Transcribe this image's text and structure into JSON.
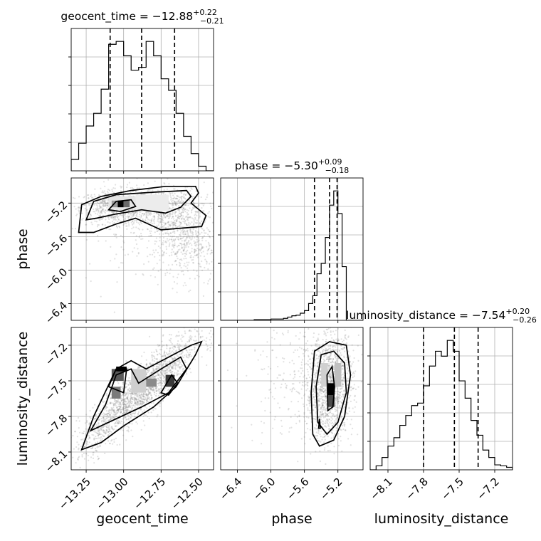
{
  "chart_data": {
    "type": "corner",
    "parameters": [
      "geocent_time",
      "phase",
      "luminosity_distance"
    ],
    "grid": true,
    "panels": [
      {
        "id": "geocent_time",
        "type": "histogram",
        "title": {
          "name": "geocent_time",
          "median": "−12.88",
          "plus": "+0.22",
          "minus": "−0.21"
        },
        "xlim": [
          -13.35,
          -12.4
        ],
        "bins_x": [
          -13.35,
          -13.3,
          -13.25,
          -13.2,
          -13.15,
          -13.1,
          -13.05,
          -13.0,
          -12.95,
          -12.9,
          -12.85,
          -12.8,
          -12.75,
          -12.7,
          -12.65,
          -12.6,
          -12.55,
          -12.5,
          -12.45,
          -12.4
        ],
        "counts": [
          20,
          48,
          78,
          100,
          142,
          220,
          225,
          200,
          175,
          180,
          225,
          200,
          160,
          140,
          100,
          60,
          30,
          8,
          0
        ],
        "quantiles": [
          -13.09,
          -12.88,
          -12.66
        ]
      },
      {
        "id": "phase",
        "type": "histogram",
        "title": {
          "name": "phase",
          "median": "−5.30",
          "plus": "+0.09",
          "minus": "−0.18"
        },
        "xlim": [
          -6.6,
          -4.9
        ],
        "bins_x": [
          -6.6,
          -6.55,
          -6.5,
          -6.45,
          -6.4,
          -6.35,
          -6.3,
          -6.25,
          -6.2,
          -6.15,
          -6.1,
          -6.05,
          -6.0,
          -5.95,
          -5.9,
          -5.85,
          -5.8,
          -5.75,
          -5.7,
          -5.65,
          -5.6,
          -5.55,
          -5.5,
          -5.45,
          -5.4,
          -5.35,
          -5.3,
          -5.25,
          -5.2,
          -5.15,
          -5.1,
          -5.05,
          -5.0,
          -4.95,
          -4.9
        ],
        "counts": [
          0,
          0,
          0,
          0,
          0,
          0,
          0,
          0,
          1,
          1,
          1,
          1,
          2,
          2,
          2,
          3,
          5,
          7,
          8,
          11,
          15,
          26,
          38,
          72,
          88,
          128,
          178,
          200,
          165,
          83,
          0,
          0,
          0,
          0
        ],
        "quantiles": [
          -5.48,
          -5.3,
          -5.21
        ]
      },
      {
        "id": "luminosity_distance",
        "type": "histogram",
        "title": {
          "name": "luminosity_distance",
          "median": "−7.54",
          "plus": "+0.20",
          "minus": "−0.26"
        },
        "xlim": [
          -8.25,
          -7.05
        ],
        "bins_x": [
          -8.25,
          -8.2,
          -8.15,
          -8.1,
          -8.05,
          -8.0,
          -7.95,
          -7.9,
          -7.85,
          -7.8,
          -7.75,
          -7.7,
          -7.65,
          -7.6,
          -7.55,
          -7.5,
          -7.45,
          -7.4,
          -7.35,
          -7.3,
          -7.25,
          -7.2,
          -7.15,
          -7.1,
          -7.05
        ],
        "counts": [
          0,
          8,
          25,
          48,
          65,
          90,
          110,
          130,
          135,
          170,
          210,
          240,
          230,
          262,
          240,
          180,
          145,
          100,
          70,
          40,
          25,
          10,
          8,
          5
        ],
        "quantiles": [
          -7.8,
          -7.54,
          -7.34
        ]
      },
      {
        "id": "geocent_time-phase",
        "type": "density2d",
        "x": "geocent_time",
        "y": "phase",
        "xlim": [
          -13.35,
          -12.4
        ],
        "ylim": [
          -6.6,
          -4.9
        ]
      },
      {
        "id": "geocent_time-luminosity_distance",
        "type": "density2d",
        "x": "geocent_time",
        "y": "luminosity_distance",
        "xlim": [
          -13.35,
          -12.4
        ],
        "ylim": [
          -8.25,
          -7.05
        ]
      },
      {
        "id": "phase-luminosity_distance",
        "type": "density2d",
        "x": "phase",
        "y": "luminosity_distance",
        "xlim": [
          -6.6,
          -4.9
        ],
        "ylim": [
          -8.25,
          -7.05
        ]
      }
    ],
    "ticks": {
      "geocent_time": [
        {
          "v": -13.25,
          "label": "−13.25"
        },
        {
          "v": -13.0,
          "label": "−13.00"
        },
        {
          "v": -12.75,
          "label": "−12.75"
        },
        {
          "v": -12.5,
          "label": "−12.50"
        }
      ],
      "phase": [
        {
          "v": -6.4,
          "label": "−6.4"
        },
        {
          "v": -6.0,
          "label": "−6.0"
        },
        {
          "v": -5.6,
          "label": "−5.6"
        },
        {
          "v": -5.2,
          "label": "−5.2"
        }
      ],
      "luminosity_distance": [
        {
          "v": -8.1,
          "label": "−8.1"
        },
        {
          "v": -7.8,
          "label": "−7.8"
        },
        {
          "v": -7.5,
          "label": "−7.5"
        },
        {
          "v": -7.2,
          "label": "−7.2"
        }
      ]
    },
    "axis_labels": {
      "geocent_time": "geocent_time",
      "phase": "phase",
      "luminosity_distance": "luminosity_distance"
    },
    "colors": {
      "line": "#000000",
      "grid": "#b0b0b0",
      "scatter": "#777777"
    }
  }
}
